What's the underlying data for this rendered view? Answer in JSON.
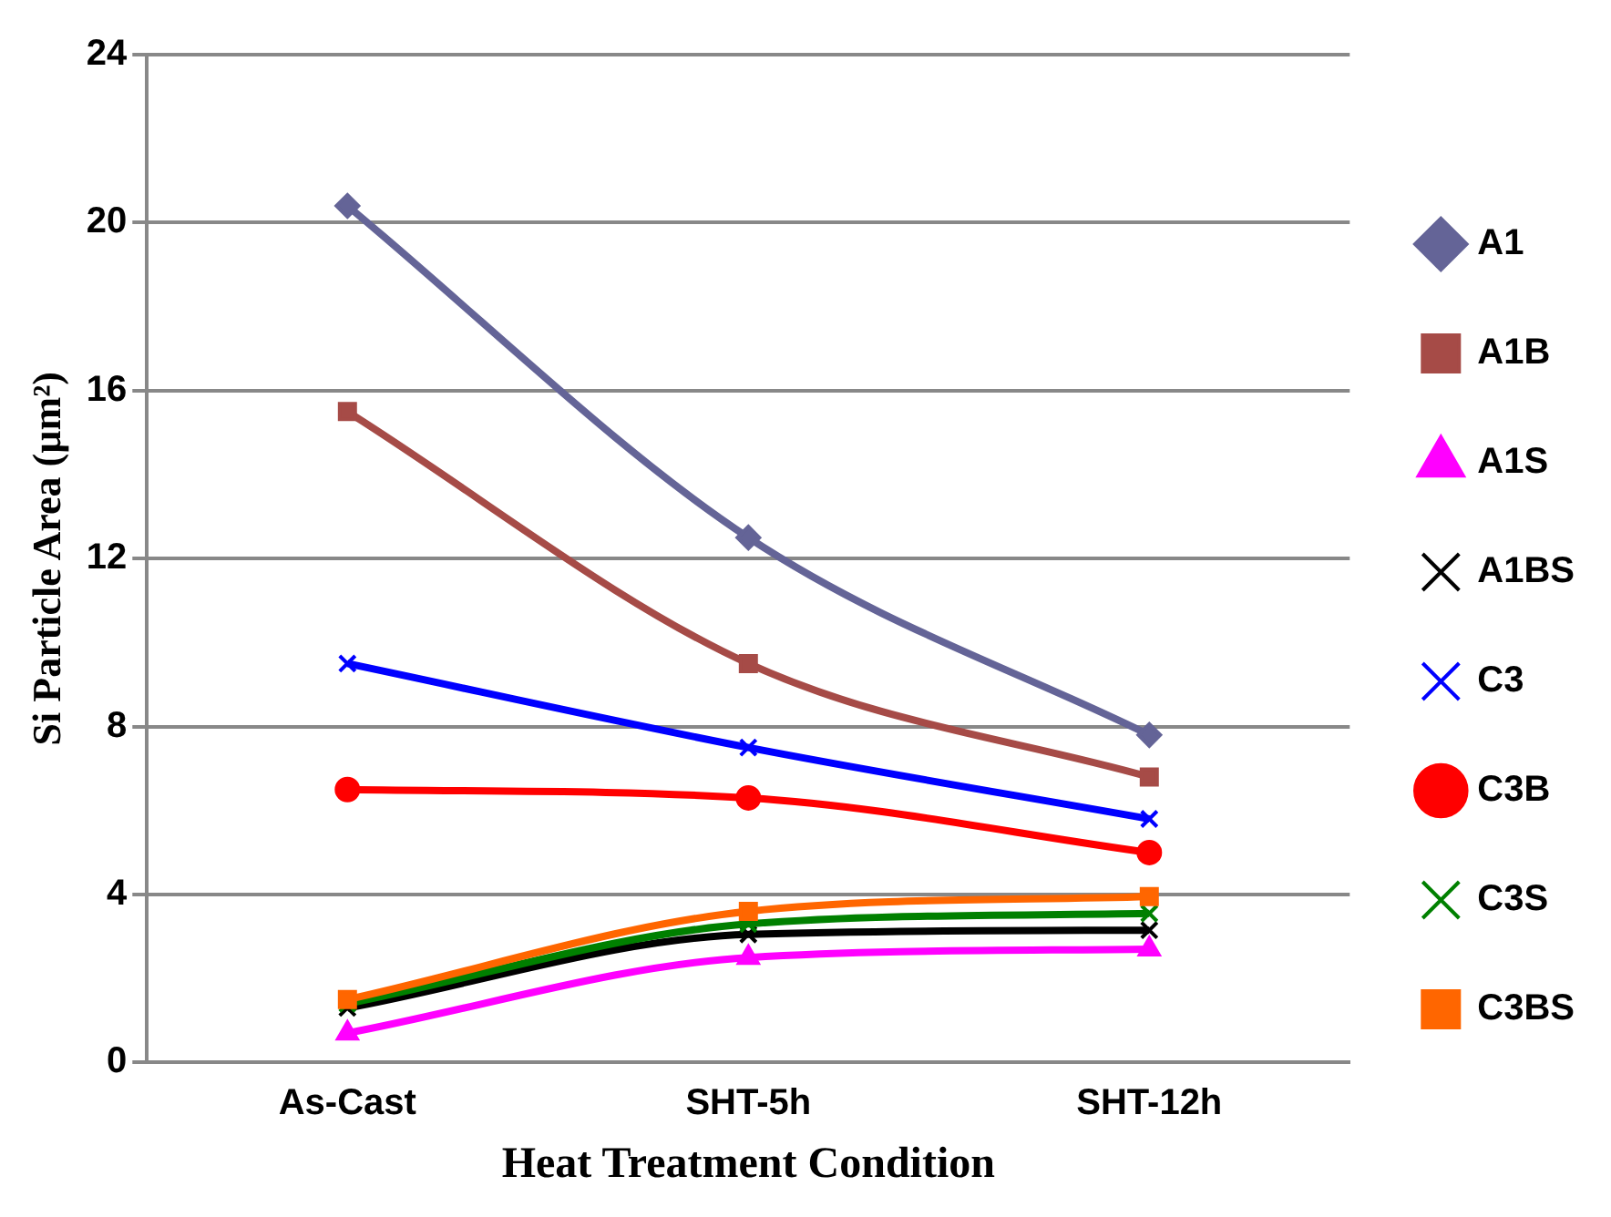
{
  "chart_data": {
    "type": "line",
    "xlabel": "Heat Treatment Condition",
    "ylabel": "Si Particle Area (µm²)",
    "categories": [
      "As-Cast",
      "SHT-5h",
      "SHT-12h"
    ],
    "ylim": [
      0,
      24
    ],
    "yticks": [
      0,
      4,
      8,
      12,
      16,
      20,
      24
    ],
    "grid": "y",
    "legend": "right",
    "series": [
      {
        "name": "A1",
        "color": "#646497",
        "marker": "diamond",
        "values": [
          20.4,
          12.5,
          7.8
        ]
      },
      {
        "name": "A1B",
        "color": "#a64b47",
        "marker": "square",
        "values": [
          15.5,
          9.5,
          6.8
        ]
      },
      {
        "name": "A1S",
        "color": "#ff00ff",
        "marker": "triangle",
        "values": [
          0.7,
          2.5,
          2.7
        ]
      },
      {
        "name": "A1BS",
        "color": "#000000",
        "marker": "cross",
        "values": [
          1.3,
          3.05,
          3.15
        ]
      },
      {
        "name": "C3",
        "color": "#0000ff",
        "marker": "cross",
        "values": [
          9.5,
          7.5,
          5.8
        ]
      },
      {
        "name": "C3B",
        "color": "#ff0000",
        "marker": "circle",
        "values": [
          6.5,
          6.3,
          5.0
        ]
      },
      {
        "name": "C3S",
        "color": "#008000",
        "marker": "cross",
        "values": [
          1.4,
          3.3,
          3.55
        ]
      },
      {
        "name": "C3BS",
        "color": "#ff6600",
        "marker": "square",
        "values": [
          1.5,
          3.6,
          3.95
        ]
      }
    ]
  }
}
